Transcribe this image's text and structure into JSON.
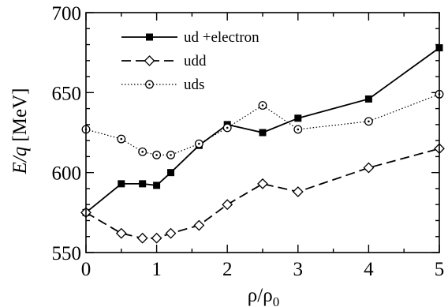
{
  "chart_data": {
    "type": "line",
    "xlabel": "ρ/ρ",
    "xlabel_sub": "0",
    "ylabel_italic": "E/q",
    "ylabel_unit": " [MeV]",
    "xlim": [
      0,
      5
    ],
    "ylim": [
      550,
      700
    ],
    "x_ticks": [
      0,
      1,
      2,
      3,
      4,
      5
    ],
    "y_ticks": [
      550,
      600,
      650,
      700
    ],
    "x_tick_labels": [
      "0",
      "1",
      "2",
      "3",
      "4",
      "5"
    ],
    "y_tick_labels": [
      "550",
      "600",
      "650",
      "700"
    ],
    "grid": false,
    "legend_position": "top-left",
    "series": [
      {
        "name": "ud +electron",
        "marker": "filled-square",
        "line": "solid",
        "x": [
          0,
          0.5,
          0.8,
          1.0,
          1.2,
          1.6,
          2.0,
          2.5,
          3.0,
          4.0,
          5.0
        ],
        "y": [
          575,
          593,
          593,
          592,
          600,
          617,
          630,
          625,
          634,
          646,
          678
        ]
      },
      {
        "name": "udd",
        "marker": "open-diamond",
        "line": "dashed",
        "x": [
          0,
          0.5,
          0.8,
          1.0,
          1.2,
          1.6,
          2.0,
          2.5,
          3.0,
          4.0,
          5.0
        ],
        "y": [
          575,
          562,
          559,
          559,
          562,
          567,
          580,
          593,
          588,
          603,
          615
        ]
      },
      {
        "name": "uds",
        "marker": "open-circle",
        "line": "dotted",
        "x": [
          0,
          0.5,
          0.8,
          1.0,
          1.2,
          1.6,
          2.0,
          2.5,
          3.0,
          4.0,
          5.0
        ],
        "y": [
          627,
          621,
          613,
          611,
          611,
          618,
          628,
          642,
          627,
          632,
          649
        ]
      }
    ]
  }
}
